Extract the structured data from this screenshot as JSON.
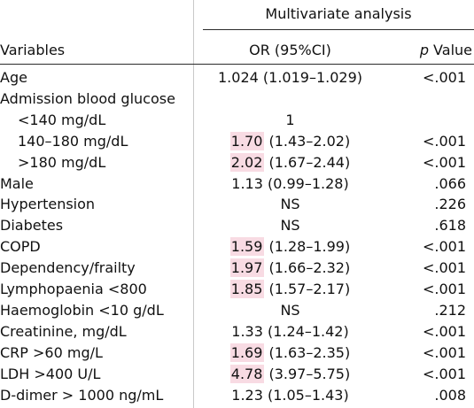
{
  "header": {
    "group_title": "Multivariate analysis",
    "col_variables": "Variables",
    "col_or": "OR (95%CI)",
    "col_p_italic": "p",
    "col_p_rest": " Value"
  },
  "rows": [
    {
      "variable": "Age",
      "or_value": "1.024",
      "or_ci": " (1.019–1.029)",
      "p": "<.001",
      "indent": false,
      "highlight": false
    },
    {
      "variable": "Admission blood glucose",
      "or_value": "",
      "or_ci": "",
      "p": "",
      "indent": false,
      "highlight": false
    },
    {
      "variable": "<140 mg/dL",
      "or_value": "1",
      "or_ci": "",
      "p": "",
      "indent": true,
      "highlight": false
    },
    {
      "variable": "140–180 mg/dL",
      "or_value": "1.70",
      "or_ci": " (1.43–2.02)",
      "p": "<.001",
      "indent": true,
      "highlight": true
    },
    {
      "variable": ">180 mg/dL",
      "or_value": "2.02",
      "or_ci": " (1.67–2.44)",
      "p": "<.001",
      "indent": true,
      "highlight": true
    },
    {
      "variable": "Male",
      "or_value": "1.13",
      "or_ci": " (0.99–1.28)",
      "p": ".066",
      "indent": false,
      "highlight": false
    },
    {
      "variable": "Hypertension",
      "or_value": "NS",
      "or_ci": "",
      "p": ".226",
      "indent": false,
      "highlight": false
    },
    {
      "variable": "Diabetes",
      "or_value": "NS",
      "or_ci": "",
      "p": ".618",
      "indent": false,
      "highlight": false
    },
    {
      "variable": "COPD",
      "or_value": "1.59",
      "or_ci": " (1.28–1.99)",
      "p": "<.001",
      "indent": false,
      "highlight": true
    },
    {
      "variable": "Dependency/frailty",
      "or_value": "1.97",
      "or_ci": " (1.66–2.32)",
      "p": "<.001",
      "indent": false,
      "highlight": true
    },
    {
      "variable": "Lymphopaenia <800",
      "or_value": "1.85",
      "or_ci": " (1.57–2.17)",
      "p": "<.001",
      "indent": false,
      "highlight": true
    },
    {
      "variable": "Haemoglobin <10 g/dL",
      "or_value": "NS",
      "or_ci": "",
      "p": ".212",
      "indent": false,
      "highlight": false
    },
    {
      "variable": "Creatinine, mg/dL",
      "or_value": "1.33",
      "or_ci": " (1.24–1.42)",
      "p": "<.001",
      "indent": false,
      "highlight": false
    },
    {
      "variable": "CRP >60 mg/L",
      "or_value": "1.69",
      "or_ci": " (1.63–2.35)",
      "p": "<.001",
      "indent": false,
      "highlight": true
    },
    {
      "variable": "LDH >400 U/L",
      "or_value": "4.78",
      "or_ci": " (3.97–5.75)",
      "p": "<.001",
      "indent": false,
      "highlight": true
    },
    {
      "variable": "D-dimer > 1000 ng/mL",
      "or_value": "1.23",
      "or_ci": " (1.05–1.43)",
      "p": ".008",
      "indent": false,
      "highlight": false
    }
  ],
  "colors": {
    "highlight": "#f8dbe3",
    "text": "#111111",
    "rule": "#2b2b2b",
    "divider": "#c9c9c9"
  }
}
